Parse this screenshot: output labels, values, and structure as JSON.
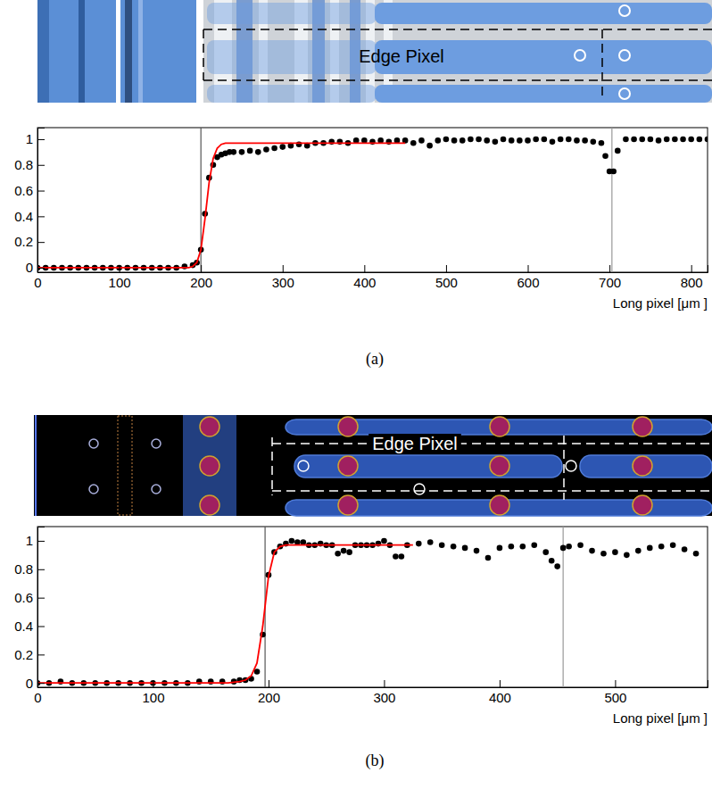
{
  "chart_data": [
    {
      "type": "scatter",
      "panel": "(a)",
      "annotation": "Edge Pixel",
      "x_label": "Long pixel [μm ]",
      "xlim": [
        0,
        820
      ],
      "xticks": [
        0,
        100,
        200,
        300,
        400,
        500,
        600,
        700,
        800
      ],
      "ylim": [
        -0.035,
        1.09
      ],
      "yticks": [
        0,
        0.2,
        0.4,
        0.6,
        0.8,
        1
      ],
      "grid": false,
      "vlines": [
        200,
        703
      ],
      "series": [
        {
          "type": "scatter",
          "color": "#000000",
          "marker": "circle",
          "x": [
            0,
            10,
            20,
            30,
            40,
            50,
            60,
            70,
            80,
            90,
            100,
            110,
            120,
            130,
            140,
            150,
            160,
            170,
            180,
            190,
            195,
            200,
            205,
            210,
            215,
            220,
            225,
            230,
            235,
            240,
            250,
            260,
            270,
            280,
            290,
            300,
            310,
            320,
            330,
            340,
            350,
            360,
            370,
            380,
            390,
            400,
            410,
            420,
            430,
            440,
            450,
            460,
            470,
            480,
            490,
            500,
            510,
            520,
            530,
            540,
            550,
            560,
            570,
            580,
            590,
            600,
            610,
            620,
            630,
            640,
            650,
            660,
            670,
            680,
            690,
            695,
            700,
            705,
            710,
            720,
            730,
            740,
            750,
            760,
            770,
            780,
            790,
            800,
            810,
            820
          ],
          "values": [
            0,
            0,
            0,
            0,
            0,
            0,
            0,
            0,
            0,
            0,
            0,
            0,
            0,
            0,
            0,
            0,
            0,
            0,
            0.01,
            0.02,
            0.04,
            0.14,
            0.42,
            0.7,
            0.8,
            0.86,
            0.88,
            0.89,
            0.9,
            0.9,
            0.9,
            0.91,
            0.9,
            0.92,
            0.93,
            0.94,
            0.95,
            0.96,
            0.95,
            0.97,
            0.97,
            0.98,
            0.98,
            0.97,
            0.99,
            0.99,
            0.98,
            0.99,
            0.98,
            0.99,
            0.99,
            0.97,
            0.99,
            0.95,
            0.99,
            1.0,
            0.99,
            0.99,
            1.0,
            1.0,
            0.99,
            0.98,
            1.0,
            0.99,
            0.99,
            0.99,
            1.0,
            1.0,
            0.98,
            1.0,
            1.0,
            0.99,
            0.99,
            0.98,
            0.97,
            0.87,
            0.75,
            0.75,
            0.91,
            1.0,
            1.0,
            1.0,
            1.0,
            0.99,
            1.0,
            1.0,
            1.0,
            1.0,
            1.0,
            1.0
          ]
        },
        {
          "type": "line",
          "color": "#ff0000",
          "line_style": "solid",
          "x": [
            0,
            185,
            190,
            195,
            200,
            205,
            210,
            215,
            220,
            225,
            230,
            240,
            450
          ],
          "values": [
            0,
            0,
            0.01,
            0.04,
            0.14,
            0.38,
            0.66,
            0.85,
            0.93,
            0.96,
            0.97,
            0.97,
            0.97
          ]
        }
      ]
    },
    {
      "type": "scatter",
      "panel": "(b)",
      "annotation": "Edge Pixel",
      "x_label": "Long pixel [μm ]",
      "xlim": [
        0,
        580
      ],
      "xticks": [
        0,
        100,
        200,
        300,
        400,
        500
      ],
      "ylim": [
        -0.03,
        1.1
      ],
      "yticks": [
        0,
        0.2,
        0.4,
        0.6,
        0.8,
        1
      ],
      "grid": false,
      "vlines": [
        197,
        455
      ],
      "series": [
        {
          "type": "scatter",
          "color": "#000000",
          "marker": "circle",
          "x": [
            0,
            10,
            20,
            30,
            40,
            50,
            60,
            70,
            80,
            90,
            100,
            110,
            120,
            130,
            140,
            150,
            160,
            170,
            175,
            180,
            185,
            190,
            195,
            200,
            205,
            210,
            215,
            220,
            225,
            230,
            235,
            240,
            245,
            250,
            255,
            260,
            265,
            270,
            275,
            280,
            285,
            290,
            295,
            300,
            305,
            310,
            315,
            320,
            330,
            340,
            350,
            360,
            370,
            380,
            390,
            400,
            410,
            420,
            430,
            440,
            445,
            450,
            455,
            460,
            470,
            480,
            490,
            500,
            510,
            520,
            530,
            540,
            550,
            560,
            570
          ],
          "values": [
            0,
            0,
            0.01,
            0,
            0,
            0,
            0,
            0,
            0,
            0,
            0,
            0,
            0,
            0,
            0.01,
            0.01,
            0.01,
            0.01,
            0.02,
            0.02,
            0.03,
            0.08,
            0.34,
            0.76,
            0.92,
            0.96,
            0.98,
            1.0,
            0.99,
            0.99,
            0.97,
            0.97,
            0.98,
            0.97,
            0.97,
            0.91,
            0.93,
            0.92,
            0.97,
            0.97,
            0.97,
            0.97,
            0.98,
            1.0,
            0.97,
            0.89,
            0.89,
            0.97,
            0.98,
            0.99,
            0.97,
            0.96,
            0.95,
            0.93,
            0.88,
            0.95,
            0.96,
            0.96,
            0.97,
            0.92,
            0.86,
            0.82,
            0.95,
            0.96,
            0.97,
            0.93,
            0.91,
            0.92,
            0.9,
            0.93,
            0.95,
            0.96,
            0.97,
            0.94,
            0.91
          ]
        },
        {
          "type": "line",
          "color": "#ff0000",
          "line_style": "solid",
          "x": [
            0,
            165,
            175,
            180,
            185,
            190,
            195,
            200,
            205,
            210,
            215,
            325
          ],
          "values": [
            0,
            0,
            0.01,
            0.02,
            0.05,
            0.14,
            0.4,
            0.75,
            0.92,
            0.96,
            0.97,
            0.97
          ]
        }
      ]
    }
  ]
}
